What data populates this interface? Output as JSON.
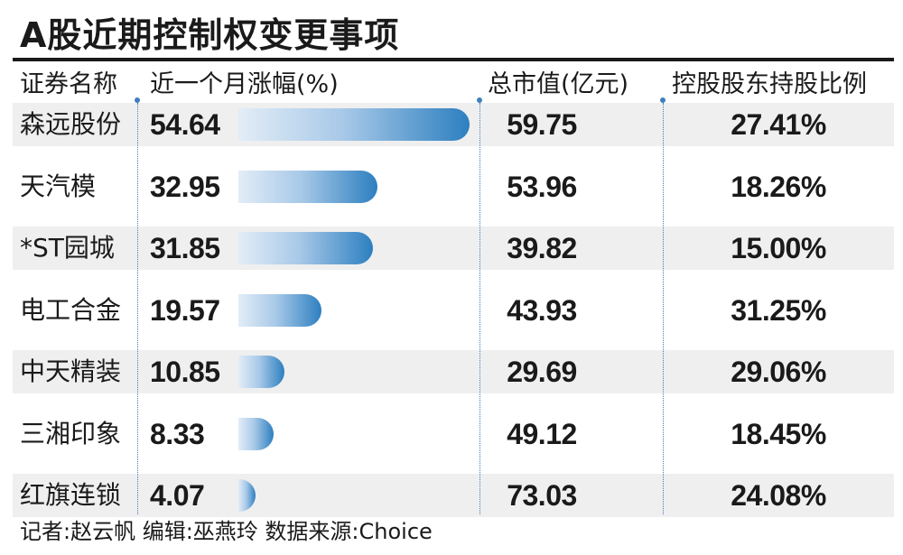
{
  "chart_data": {
    "type": "table",
    "title": "A股近期控制权变更事项",
    "columns": [
      "证券名称",
      "近一个月涨幅(%)",
      "总市值(亿元)",
      "控股股东持股比例"
    ],
    "rows": [
      {
        "name": "森远股份",
        "change": 54.64,
        "change_label": "54.64",
        "market_cap": "59.75",
        "holding": "27.41%"
      },
      {
        "name": "天汽模",
        "change": 32.95,
        "change_label": "32.95",
        "market_cap": "53.96",
        "holding": "18.26%"
      },
      {
        "name": "*ST园城",
        "change": 31.85,
        "change_label": "31.85",
        "market_cap": "39.82",
        "holding": "15.00%"
      },
      {
        "name": "电工合金",
        "change": 19.57,
        "change_label": "19.57",
        "market_cap": "43.93",
        "holding": "31.25%"
      },
      {
        "name": "中天精装",
        "change": 10.85,
        "change_label": "10.85",
        "market_cap": "29.69",
        "holding": "29.06%"
      },
      {
        "name": "三湘印象",
        "change": 8.33,
        "change_label": "8.33",
        "market_cap": "49.12",
        "holding": "18.45%"
      },
      {
        "name": "红旗连锁",
        "change": 4.07,
        "change_label": "4.07",
        "market_cap": "73.03",
        "holding": "24.08%"
      }
    ],
    "bar_color": "#2d7fc0",
    "bar_max": 54.64
  },
  "footer": "记者:赵云帆   编辑:巫燕玲   数据来源:Choice"
}
